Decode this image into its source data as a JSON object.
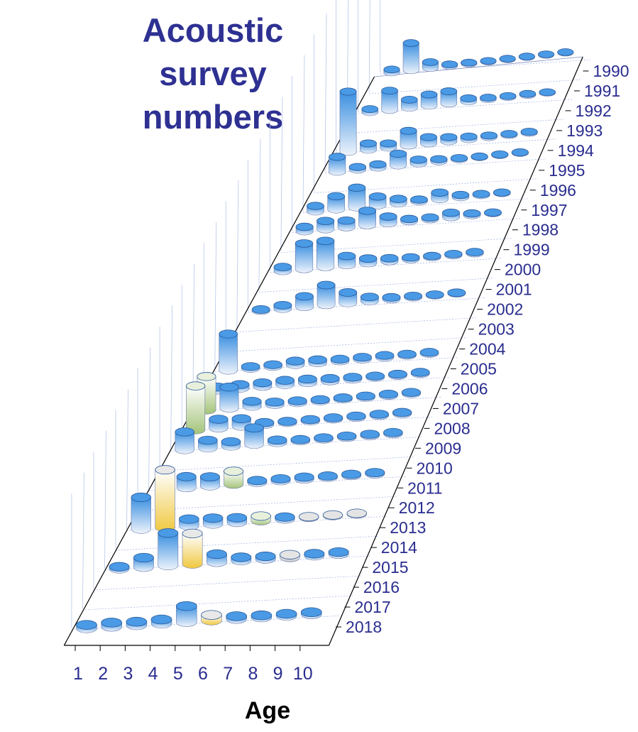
{
  "colors": {
    "title": "#2e3192",
    "labels": "#2a2d8f",
    "bar_blue": "#3a8fe0",
    "bar_yellow": "#f0d050",
    "bar_green": "#b5d08a",
    "bar_grey": "#c8c8c8"
  },
  "chart_data": {
    "type": "bar",
    "title": [
      "Acoustic",
      "survey",
      "numbers"
    ],
    "xlabel": "Age",
    "x": [
      "1",
      "2",
      "3",
      "4",
      "5",
      "6",
      "7",
      "8",
      "9",
      "10"
    ],
    "years": [
      "1990",
      "1991",
      "1992",
      "1993",
      "1994",
      "1995",
      "1996",
      "1997",
      "1998",
      "1999",
      "2000",
      "2001",
      "2002",
      "2003",
      "2004",
      "2005",
      "2006",
      "2007",
      "2008",
      "2009",
      "2010",
      "2011",
      "2012",
      "2013",
      "2014",
      "2015",
      "2016",
      "2017",
      "2018"
    ],
    "values_note": "relative heights, arbitrary units (no y axis printed)",
    "series": [
      {
        "year": "1990",
        "values": [
          0.6,
          5.5,
          1.2,
          0.3,
          0.2,
          0.1,
          0.1,
          0.1,
          0.1,
          0.1
        ],
        "colors": [
          "b",
          "b",
          "b",
          "b",
          "b",
          "b",
          "b",
          "b",
          "b",
          "b"
        ]
      },
      {
        "year": "1991",
        "values": [
          0,
          0,
          0,
          0,
          0,
          0,
          0,
          0,
          0,
          0
        ],
        "colors": [
          "b",
          "b",
          "b",
          "b",
          "b",
          "b",
          "b",
          "b",
          "b",
          "b"
        ]
      },
      {
        "year": "1992",
        "values": [
          0.6,
          3.8,
          1.6,
          2.2,
          2.4,
          0.6,
          0.3,
          0.2,
          0.2,
          0.1
        ],
        "colors": [
          "b",
          "b",
          "b",
          "b",
          "b",
          "b",
          "b",
          "b",
          "b",
          "b"
        ]
      },
      {
        "year": "1993",
        "values": [
          0,
          0,
          0,
          0,
          0,
          0,
          0,
          0,
          0,
          0
        ],
        "colors": [
          "b",
          "b",
          "b",
          "b",
          "b",
          "b",
          "b",
          "b",
          "b",
          "b"
        ]
      },
      {
        "year": "1994",
        "values": [
          11.5,
          1.2,
          0.8,
          2.8,
          1.2,
          0.8,
          0.5,
          0.3,
          0.2,
          0.2
        ],
        "colors": [
          "b",
          "b",
          "b",
          "b",
          "b",
          "b",
          "b",
          "b",
          "b",
          "b"
        ]
      },
      {
        "year": "1995",
        "values": [
          2.8,
          0.5,
          0.6,
          2.2,
          0.7,
          0.4,
          0.2,
          0.1,
          0.1,
          0.1
        ],
        "colors": [
          "b",
          "b",
          "b",
          "b",
          "b",
          "b",
          "b",
          "b",
          "b",
          "b"
        ]
      },
      {
        "year": "1996",
        "values": [
          0,
          0,
          0,
          0,
          0,
          0,
          0,
          0,
          0,
          0
        ],
        "colors": [
          "b",
          "b",
          "b",
          "b",
          "b",
          "b",
          "b",
          "b",
          "b",
          "b"
        ]
      },
      {
        "year": "1997",
        "values": [
          1.0,
          2.4,
          3.6,
          1.6,
          0.8,
          0.3,
          1.2,
          0.4,
          0.2,
          0.1
        ],
        "colors": [
          "b",
          "b",
          "b",
          "b",
          "b",
          "b",
          "b",
          "b",
          "b",
          "b"
        ]
      },
      {
        "year": "1998",
        "values": [
          0.8,
          1.5,
          1.2,
          2.6,
          1.2,
          0.4,
          0.3,
          0.8,
          0.3,
          0.1
        ],
        "colors": [
          "b",
          "b",
          "b",
          "b",
          "b",
          "b",
          "b",
          "b",
          "b",
          "b"
        ]
      },
      {
        "year": "1999",
        "values": [
          0,
          0,
          0,
          0,
          0,
          0,
          0,
          0,
          0,
          0
        ],
        "colors": [
          "b",
          "b",
          "b",
          "b",
          "b",
          "b",
          "b",
          "b",
          "b",
          "b"
        ]
      },
      {
        "year": "2000",
        "values": [
          0.7,
          4.5,
          4.6,
          1.6,
          0.8,
          0.5,
          0.3,
          0.2,
          0.2,
          0.2
        ],
        "colors": [
          "b",
          "b",
          "b",
          "b",
          "b",
          "b",
          "b",
          "b",
          "b",
          "b"
        ]
      },
      {
        "year": "2001",
        "values": [
          0,
          0,
          0,
          0,
          0,
          0,
          0,
          0,
          0,
          0
        ],
        "colors": [
          "b",
          "b",
          "b",
          "b",
          "b",
          "b",
          "b",
          "b",
          "b",
          "b"
        ]
      },
      {
        "year": "2002",
        "values": [
          0.2,
          0.6,
          1.8,
          3.4,
          1.8,
          0.7,
          0.3,
          0.2,
          0.1,
          0.1
        ],
        "colors": [
          "b",
          "b",
          "b",
          "b",
          "b",
          "b",
          "b",
          "b",
          "b",
          "b"
        ]
      },
      {
        "year": "2003",
        "values": [
          0,
          0,
          0,
          0,
          0,
          0,
          0,
          0,
          0,
          0
        ],
        "colors": [
          "b",
          "b",
          "b",
          "b",
          "b",
          "b",
          "b",
          "b",
          "b",
          "b"
        ]
      },
      {
        "year": "2004",
        "values": [
          0,
          0,
          0,
          0,
          0,
          0,
          0,
          0,
          0,
          0
        ],
        "colors": [
          "b",
          "b",
          "b",
          "b",
          "b",
          "b",
          "b",
          "b",
          "b",
          "b"
        ]
      },
      {
        "year": "2005",
        "values": [
          6.0,
          0.3,
          0.3,
          0.6,
          0.5,
          0.3,
          0.3,
          0.3,
          0.2,
          0.2
        ],
        "colors": [
          "b",
          "b",
          "b",
          "b",
          "b",
          "b",
          "b",
          "b",
          "b",
          "b"
        ]
      },
      {
        "year": "2006",
        "values": [
          0.5,
          0.6,
          0.6,
          0.7,
          0.6,
          0.4,
          0.3,
          0.2,
          0.2,
          0.2
        ],
        "colors": [
          "b",
          "b",
          "b",
          "b",
          "b",
          "b",
          "b",
          "b",
          "b",
          "b"
        ]
      },
      {
        "year": "2007",
        "values": [
          5.4,
          3.4,
          0.8,
          0.4,
          0.3,
          0.2,
          0.2,
          0.2,
          0.2,
          0.2
        ],
        "colors": [
          "g",
          "b",
          "b",
          "b",
          "b",
          "b",
          "b",
          "b",
          "b",
          "b"
        ]
      },
      {
        "year": "2008",
        "values": [
          7.0,
          1.4,
          1.2,
          0.3,
          0.2,
          0.2,
          0.2,
          0.2,
          0.2,
          0.2
        ],
        "colors": [
          "g",
          "b",
          "b",
          "b",
          "b",
          "b",
          "b",
          "b",
          "b",
          "b"
        ]
      },
      {
        "year": "2009",
        "values": [
          2.8,
          1.2,
          0.7,
          2.6,
          0.4,
          0.2,
          0.2,
          0.2,
          0.2,
          0.2
        ],
        "colors": [
          "b",
          "b",
          "b",
          "b",
          "b",
          "b",
          "b",
          "b",
          "b",
          "b"
        ]
      },
      {
        "year": "2010",
        "values": [
          0,
          0,
          0,
          0,
          0,
          0,
          0,
          0,
          0,
          0
        ],
        "colors": [
          "b",
          "b",
          "b",
          "b",
          "b",
          "b",
          "b",
          "b",
          "b",
          "b"
        ]
      },
      {
        "year": "2011",
        "values": [
          0,
          1.7,
          1.4,
          2.0,
          0.3,
          0.3,
          0.3,
          0.2,
          0.2,
          0.2
        ],
        "colors": [
          "b",
          "b",
          "b",
          "g",
          "b",
          "b",
          "b",
          "b",
          "b",
          "b"
        ]
      },
      {
        "year": "2012",
        "values": [
          0,
          0,
          0,
          0,
          0,
          0,
          0,
          0,
          0,
          0
        ],
        "colors": [
          "b",
          "b",
          "b",
          "b",
          "b",
          "b",
          "b",
          "b",
          "b",
          "b"
        ]
      },
      {
        "year": "2013",
        "values": [
          4.8,
          8.7,
          1.0,
          0.9,
          0.7,
          0.7,
          0.3,
          0.1,
          0.1,
          0.1
        ],
        "colors": [
          "b",
          "y",
          "b",
          "b",
          "b",
          "g",
          "b",
          "x",
          "x",
          "x"
        ]
      },
      {
        "year": "2014",
        "values": [
          0,
          0,
          0,
          0,
          0,
          0,
          0,
          0,
          0,
          0
        ],
        "colors": [
          "b",
          "b",
          "b",
          "b",
          "b",
          "b",
          "b",
          "b",
          "b",
          "b"
        ]
      },
      {
        "year": "2015",
        "values": [
          0.3,
          1.4,
          4.8,
          4.5,
          1.2,
          0.5,
          0.4,
          0.4,
          0.3,
          0.3
        ],
        "colors": [
          "b",
          "b",
          "b",
          "y",
          "b",
          "b",
          "b",
          "x",
          "b",
          "b"
        ]
      },
      {
        "year": "2016",
        "values": [
          0,
          0,
          0,
          0,
          0,
          0,
          0,
          0,
          0,
          0
        ],
        "colors": [
          "b",
          "b",
          "b",
          "b",
          "b",
          "b",
          "b",
          "b",
          "b",
          "b"
        ]
      },
      {
        "year": "2017",
        "values": [
          0,
          0,
          0,
          0,
          0,
          0,
          0,
          0,
          0,
          0
        ],
        "colors": [
          "b",
          "b",
          "b",
          "b",
          "b",
          "b",
          "b",
          "b",
          "b",
          "b"
        ]
      },
      {
        "year": "2018",
        "values": [
          0.5,
          0.6,
          0.5,
          0.6,
          2.3,
          0.8,
          0.4,
          0.3,
          0.3,
          0.3
        ],
        "colors": [
          "b",
          "b",
          "b",
          "b",
          "b",
          "y",
          "b",
          "b",
          "b",
          "b"
        ]
      }
    ],
    "grid": true,
    "legend": "none"
  }
}
